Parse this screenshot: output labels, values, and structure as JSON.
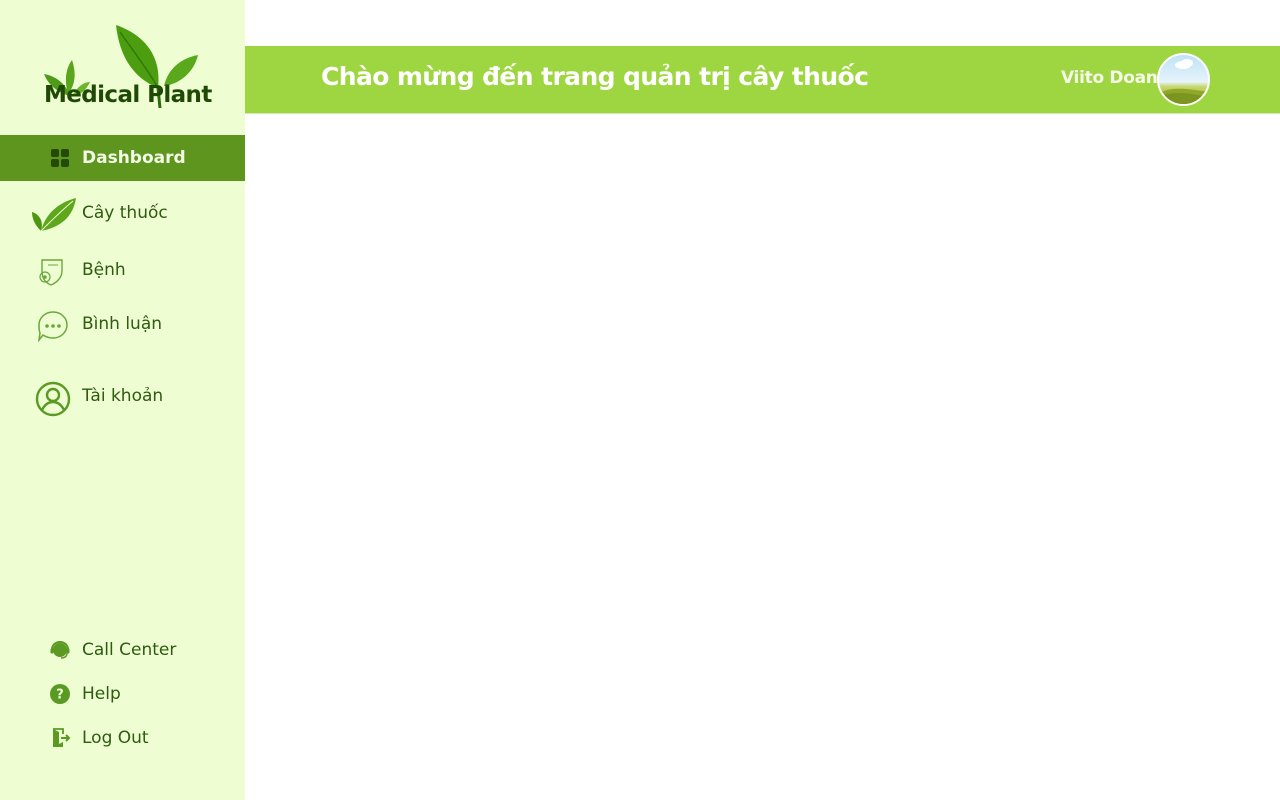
{
  "app": {
    "logo_text": "Medical Plant"
  },
  "sidebar": {
    "items": [
      {
        "label": "Dashboard",
        "icon": "dashboard-grid-icon",
        "active": true
      },
      {
        "label": "Cây thuốc",
        "icon": "leaf-icon",
        "active": false
      },
      {
        "label": "Bệnh",
        "icon": "disease-shield-icon",
        "active": false
      },
      {
        "label": "Bình luận",
        "icon": "comment-bubble-icon",
        "active": false
      },
      {
        "label": "Tài khoản",
        "icon": "user-account-icon",
        "active": false
      }
    ],
    "bottom_items": [
      {
        "label": "Call Center",
        "icon": "headset-icon"
      },
      {
        "label": "Help",
        "icon": "help-icon"
      },
      {
        "label": "Log Out",
        "icon": "logout-icon"
      }
    ]
  },
  "header": {
    "title": "Chào mừng đến trang quản trị cây thuốc",
    "user_name": "Viito Doan"
  },
  "colors": {
    "sidebar_bg": "#eefdd2",
    "active_item_bg": "#5d951e",
    "header_bg": "#9ed641",
    "text_dark_green": "#2f5a10",
    "icon_green": "#5d951e"
  }
}
